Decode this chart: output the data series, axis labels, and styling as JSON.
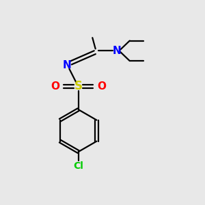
{
  "background_color": "#e8e8e8",
  "atom_colors": {
    "C": "#000000",
    "N": "#0000ff",
    "O": "#ff0000",
    "S": "#cccc00",
    "Cl": "#00cc00"
  },
  "figsize": [
    3.0,
    3.0
  ],
  "dpi": 100
}
